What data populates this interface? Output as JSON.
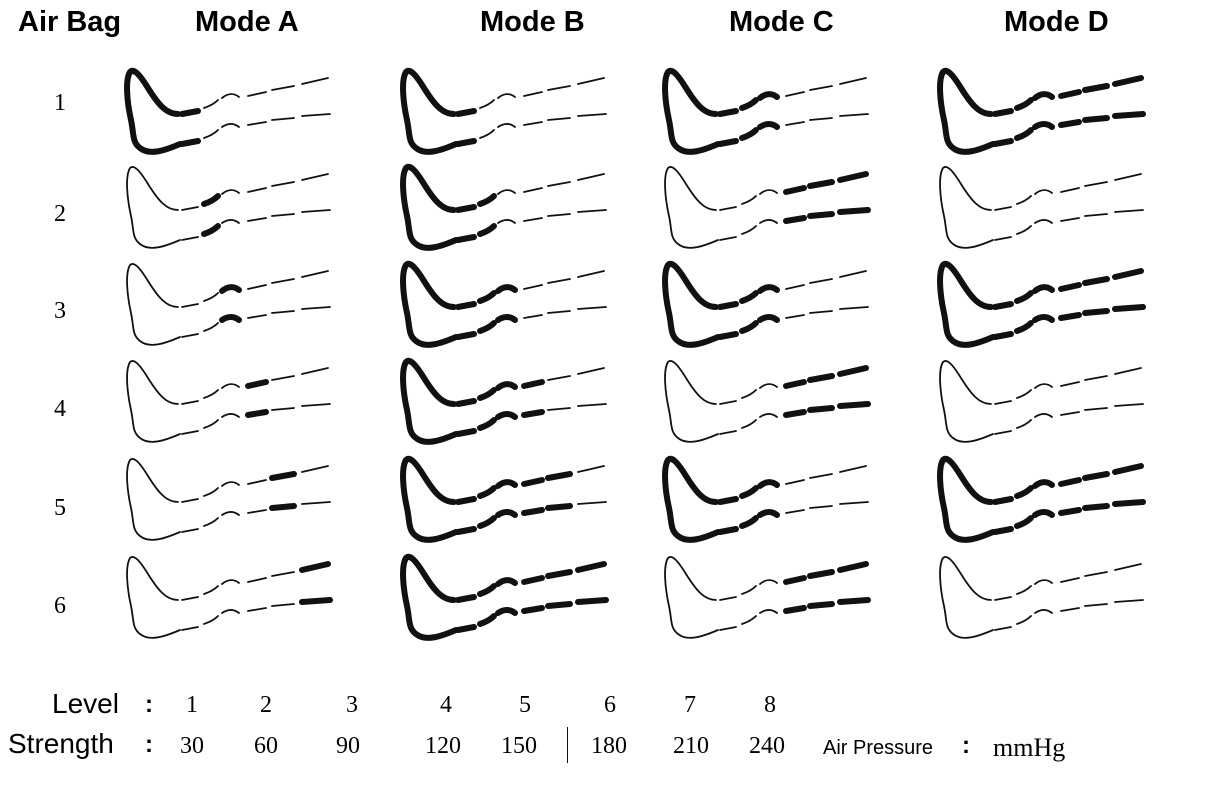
{
  "header": {
    "air_bag": "Air Bag",
    "modes": [
      "Mode A",
      "Mode B",
      "Mode C",
      "Mode D"
    ]
  },
  "rows": [
    "1",
    "2",
    "3",
    "4",
    "5",
    "6"
  ],
  "inflation": {
    "note": "inflated segments per mode (rows 1-6); 0=foot,1=ankle,2=lower leg,3=calf,4=knee,5=thigh",
    "Mode A": [
      [
        0
      ],
      [
        1
      ],
      [
        2
      ],
      [
        3
      ],
      [
        4
      ],
      [
        5
      ]
    ],
    "Mode B": [
      [
        0
      ],
      [
        0,
        1
      ],
      [
        0,
        1,
        2
      ],
      [
        0,
        1,
        2,
        3
      ],
      [
        0,
        1,
        2,
        3,
        4
      ],
      [
        0,
        1,
        2,
        3,
        4,
        5
      ]
    ],
    "Mode C": [
      [
        0,
        1,
        2
      ],
      [
        3,
        4,
        5
      ],
      [
        0,
        1,
        2
      ],
      [
        3,
        4,
        5
      ],
      [
        0,
        1,
        2
      ],
      [
        3,
        4,
        5
      ]
    ],
    "Mode D": [
      [
        0,
        1,
        2,
        3,
        4,
        5
      ],
      [],
      [
        0,
        1,
        2,
        3,
        4,
        5
      ],
      [],
      [
        0,
        1,
        2,
        3,
        4,
        5
      ],
      []
    ]
  },
  "legend": {
    "level_label": "Level",
    "strength_label": "Strength",
    "colon": ":",
    "levels": [
      "1",
      "2",
      "3",
      "4",
      "5",
      "6",
      "7",
      "8"
    ],
    "strengths": [
      "30",
      "60",
      "90",
      "120",
      "150",
      "180",
      "210",
      "240"
    ],
    "air_pressure_label": "Air Pressure",
    "unit": "mmHg"
  }
}
